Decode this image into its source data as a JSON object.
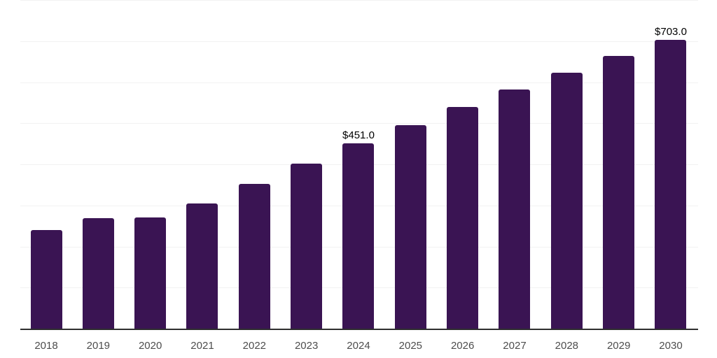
{
  "chart_data": {
    "type": "bar",
    "title": "",
    "xlabel": "",
    "ylabel": "",
    "categories": [
      "2018",
      "2019",
      "2020",
      "2021",
      "2022",
      "2023",
      "2024",
      "2025",
      "2026",
      "2027",
      "2028",
      "2029",
      "2030"
    ],
    "values": [
      240,
      269,
      270,
      305,
      352,
      402,
      451,
      495,
      540,
      582,
      623,
      664,
      703
    ],
    "annotations": [
      {
        "index": 6,
        "text": "$451.0"
      },
      {
        "index": 12,
        "text": "$703.0"
      }
    ],
    "ylim": [
      0,
      800
    ],
    "gridline_step": 100,
    "grid": true,
    "legend": false,
    "colors": {
      "bar": "#3a1453",
      "gridline": "#f2f2f2",
      "axis_line": "#2f2f2f",
      "tick_label": "#4d4d4d",
      "data_label": "#000000",
      "background": "#ffffff"
    }
  }
}
